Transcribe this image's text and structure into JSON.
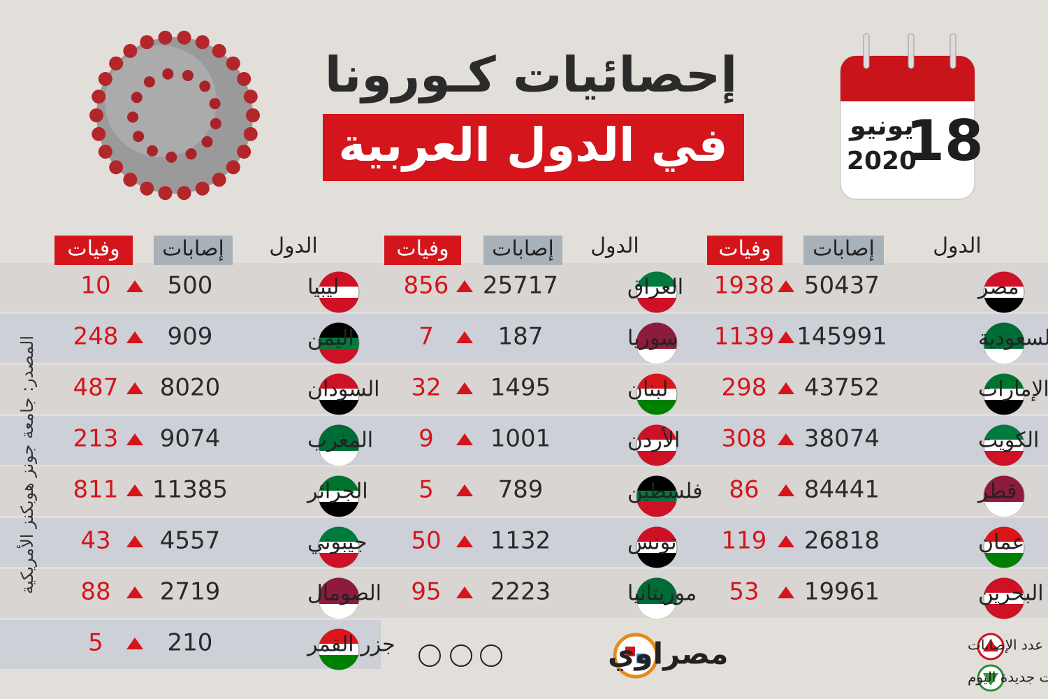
{
  "header": {
    "title": "إحصائيات كـورونا",
    "subtitle": "في الدول العربية"
  },
  "date": {
    "day": "18",
    "month": "يونيو",
    "year": "2020"
  },
  "panels": [
    {
      "headers": {
        "country": "الدول",
        "cases": "إصابات",
        "deaths": "وفيات"
      },
      "rows": [
        {
          "country": "مصر",
          "cases": "50437",
          "deaths": "1938"
        },
        {
          "country": "السعودية",
          "cases": "145991",
          "deaths": "1139"
        },
        {
          "country": "الإمارات",
          "cases": "43752",
          "deaths": "298"
        },
        {
          "country": "الكويت",
          "cases": "38074",
          "deaths": "308"
        },
        {
          "country": "قطر",
          "cases": "84441",
          "deaths": "86"
        },
        {
          "country": "عمان",
          "cases": "26818",
          "deaths": "119"
        },
        {
          "country": "البحرين",
          "cases": "19961",
          "deaths": "53"
        }
      ]
    },
    {
      "headers": {
        "country": "الدول",
        "cases": "إصابات",
        "deaths": "وفيات"
      },
      "rows": [
        {
          "country": "العراق",
          "cases": "25717",
          "deaths": "856"
        },
        {
          "country": "سوريا",
          "cases": "187",
          "deaths": "7"
        },
        {
          "country": "لبنان",
          "cases": "1495",
          "deaths": "32"
        },
        {
          "country": "الأردن",
          "cases": "1001",
          "deaths": "9"
        },
        {
          "country": "فلسطين",
          "cases": "789",
          "deaths": "5"
        },
        {
          "country": "تونس",
          "cases": "1132",
          "deaths": "50"
        },
        {
          "country": "موريتانيا",
          "cases": "2223",
          "deaths": "95"
        }
      ]
    },
    {
      "headers": {
        "country": "الدول",
        "cases": "إصابات",
        "deaths": "وفيات"
      },
      "rows": [
        {
          "country": "ليبيا",
          "cases": "500",
          "deaths": "10"
        },
        {
          "country": "اليمن",
          "cases": "909",
          "deaths": "248"
        },
        {
          "country": "السودان",
          "cases": "8020",
          "deaths": "487"
        },
        {
          "country": "المغرب",
          "cases": "9074",
          "deaths": "213"
        },
        {
          "country": "الجزائر",
          "cases": "11385",
          "deaths": "811"
        },
        {
          "country": "جيبوتي",
          "cases": "4557",
          "deaths": "43"
        },
        {
          "country": "الصومال",
          "cases": "2719",
          "deaths": "88"
        },
        {
          "country": "جزر القمر",
          "cases": "210",
          "deaths": "5"
        }
      ]
    }
  ],
  "legend": {
    "increase": "إرتفاع عدد الإصابات",
    "no_new": "لم تسجل إصابات جديدة اليوم"
  },
  "brand": "مصراوي",
  "source": "المصدر: جامعة جونز هوبكنز الأمريكية"
}
